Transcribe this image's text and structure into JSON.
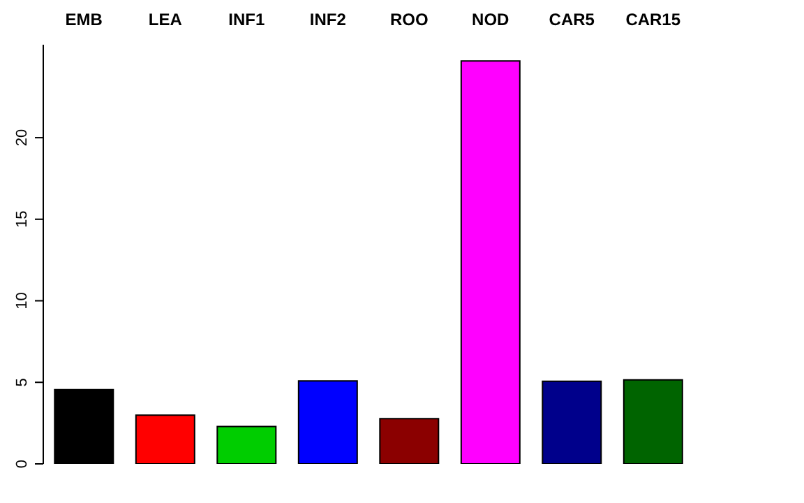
{
  "chart_data": {
    "type": "bar",
    "categories": [
      "EMB",
      "LEA",
      "INF1",
      "INF2",
      "ROO",
      "NOD",
      "CAR5",
      "CAR15"
    ],
    "values": [
      4.55,
      2.99,
      2.29,
      5.09,
      2.77,
      24.7,
      5.06,
      5.15
    ],
    "colors": [
      "#000000",
      "#ff0000",
      "#00cd00",
      "#0000ff",
      "#8b0000",
      "#ff00ff",
      "#00008b",
      "#006400"
    ],
    "ylim": [
      0,
      25.7
    ],
    "yticks": [
      0,
      5,
      10,
      15,
      20
    ],
    "grid": false,
    "legend": false
  }
}
